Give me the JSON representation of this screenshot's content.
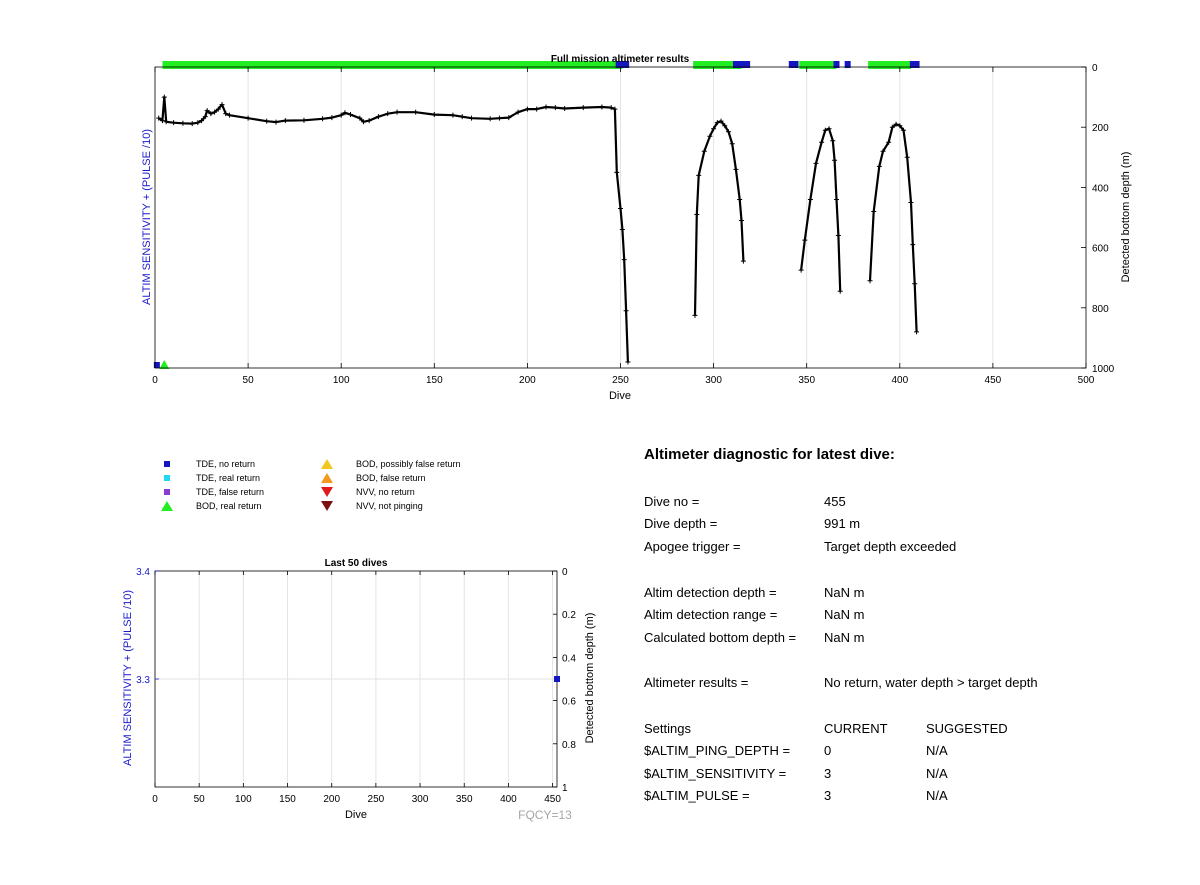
{
  "chart_data": [
    {
      "type": "line",
      "title": "Full mission altimeter results",
      "xlabel": "Dive",
      "ylabel_left": "ALTIM SENSITIVITY + (PULSE /10)",
      "ylabel_right": "Detected bottom depth (m)",
      "xlim": [
        0,
        500
      ],
      "ylim_right": [
        1000,
        0
      ],
      "x_ticks": [
        "0",
        "50",
        "100",
        "150",
        "200",
        "250",
        "300",
        "350",
        "400",
        "450",
        "500"
      ],
      "y_right_ticks": [
        "0",
        "200",
        "400",
        "600",
        "800",
        "1000"
      ],
      "grid": "vertical",
      "series": [
        {
          "kind": "detected-bottom-depth",
          "color": "#000000",
          "segments": [
            [
              [
                2,
                170
              ],
              [
                4,
                178
              ],
              [
                5,
                100
              ],
              [
                6,
                182
              ],
              [
                10,
                185
              ],
              [
                15,
                187
              ],
              [
                20,
                188
              ],
              [
                23,
                185
              ],
              [
                25,
                178
              ],
              [
                27,
                165
              ],
              [
                28,
                145
              ],
              [
                30,
                155
              ],
              [
                32,
                150
              ],
              [
                34,
                140
              ],
              [
                36,
                125
              ],
              [
                38,
                155
              ],
              [
                40,
                160
              ],
              [
                50,
                170
              ],
              [
                60,
                180
              ],
              [
                65,
                183
              ],
              [
                70,
                178
              ],
              [
                80,
                177
              ],
              [
                90,
                172
              ],
              [
                95,
                168
              ],
              [
                100,
                160
              ],
              [
                102,
                152
              ],
              [
                105,
                158
              ],
              [
                110,
                170
              ],
              [
                112,
                182
              ],
              [
                115,
                178
              ],
              [
                120,
                165
              ],
              [
                125,
                155
              ],
              [
                130,
                150
              ],
              [
                140,
                150
              ],
              [
                150,
                158
              ],
              [
                160,
                160
              ],
              [
                165,
                165
              ],
              [
                170,
                170
              ],
              [
                180,
                172
              ],
              [
                185,
                170
              ],
              [
                190,
                168
              ],
              [
                195,
                150
              ],
              [
                200,
                140
              ],
              [
                205,
                140
              ],
              [
                210,
                133
              ],
              [
                215,
                135
              ],
              [
                220,
                138
              ],
              [
                230,
                135
              ],
              [
                240,
                133
              ],
              [
                245,
                135
              ],
              [
                247,
                140
              ],
              [
                248,
                350
              ],
              [
                250,
                470
              ],
              [
                251,
                540
              ],
              [
                252,
                640
              ],
              [
                253,
                810
              ],
              [
                254,
                980
              ]
            ],
            [
              [
                290,
                825
              ],
              [
                291,
                490
              ],
              [
                292,
                360
              ],
              [
                295,
                280
              ],
              [
                298,
                230
              ],
              [
                300,
                205
              ],
              [
                302,
                185
              ],
              [
                304,
                180
              ],
              [
                306,
                195
              ],
              [
                308,
                215
              ],
              [
                310,
                255
              ],
              [
                312,
                340
              ],
              [
                314,
                440
              ],
              [
                315,
                510
              ],
              [
                316,
                645
              ]
            ],
            [
              [
                347,
                675
              ],
              [
                349,
                575
              ],
              [
                352,
                440
              ],
              [
                355,
                320
              ],
              [
                358,
                250
              ],
              [
                360,
                210
              ],
              [
                362,
                205
              ],
              [
                364,
                245
              ],
              [
                365,
                310
              ],
              [
                366,
                440
              ],
              [
                367,
                560
              ],
              [
                368,
                745
              ]
            ],
            [
              [
                384,
                710
              ],
              [
                386,
                480
              ],
              [
                389,
                330
              ],
              [
                391,
                280
              ],
              [
                394,
                250
              ],
              [
                396,
                200
              ],
              [
                398,
                190
              ],
              [
                400,
                195
              ],
              [
                402,
                210
              ],
              [
                404,
                300
              ],
              [
                406,
                450
              ],
              [
                407,
                590
              ],
              [
                408,
                720
              ],
              [
                409,
                880
              ]
            ]
          ]
        },
        {
          "kind": "BOD, real return",
          "color": "#22ee22",
          "ranges": [
            [
              4,
              251
            ],
            [
              289,
              315
            ],
            [
              346,
              366
            ],
            [
              383,
              406
            ]
          ]
        },
        {
          "kind": "TDE, no return",
          "color": "#1616c0",
          "points": [
            249,
            251,
            253,
            253,
            312,
            314,
            316,
            318,
            342,
            344,
            366,
            372,
            407,
            409
          ]
        }
      ],
      "bottom_markers": [
        {
          "x": 1,
          "kind": "TDE, no return",
          "color": "#1616c0"
        },
        {
          "x": 5,
          "kind": "BOD, real return",
          "color": "#22ee22"
        }
      ]
    },
    {
      "type": "scatter",
      "title": "Last 50 dives",
      "xlabel": "Dive",
      "ylabel_left": "ALTIM SENSITIVITY + (PULSE /10)",
      "ylabel_right": "Detected bottom depth (m)",
      "xlim": [
        0,
        455
      ],
      "ylim_left": [
        3.2,
        3.4
      ],
      "ylim_right": [
        1,
        0
      ],
      "x_ticks": [
        "0",
        "50",
        "100",
        "150",
        "200",
        "250",
        "300",
        "350",
        "400",
        "450"
      ],
      "y_left_ticks": [
        "3.4",
        "3.3"
      ],
      "y_right_ticks": [
        "0",
        "0.2",
        "0.4",
        "0.6",
        "0.8",
        "1"
      ],
      "grid": "both",
      "points": [
        {
          "x": 455,
          "y": 3.3,
          "kind": "TDE, no return",
          "color": "#1616c0"
        }
      ],
      "annotation": "FQCY=13"
    }
  ],
  "legend": [
    {
      "label": "TDE, no return",
      "shape": "square",
      "color": "#1616c0"
    },
    {
      "label": "TDE, real return",
      "shape": "square",
      "color": "#22d8ee"
    },
    {
      "label": "TDE, false return",
      "shape": "square",
      "color": "#8a3ccf"
    },
    {
      "label": "BOD, real return",
      "shape": "triangle-up",
      "color": "#22ee22"
    },
    {
      "label": "BOD, possibly false return",
      "shape": "triangle-up",
      "color": "#f2c81e"
    },
    {
      "label": "BOD, false return",
      "shape": "triangle-up",
      "color": "#f39a1e"
    },
    {
      "label": "NVV, no return",
      "shape": "triangle-down",
      "color": "#e01b1b"
    },
    {
      "label": "NVV, not pinging",
      "shape": "triangle-down",
      "color": "#7a1010"
    }
  ],
  "diagnostic": {
    "title": "Altimeter diagnostic for latest dive:",
    "dive_no_label": "Dive no =",
    "dive_no": "455",
    "dive_depth_label": "Dive depth =",
    "dive_depth": "991 m",
    "apogee_label": "Apogee trigger =",
    "apogee": "Target depth exceeded",
    "altim_depth_label": "Altim detection depth =",
    "altim_depth": "NaN m",
    "altim_range_label": "Altim detection range =",
    "altim_range": "NaN m",
    "calc_depth_label": "Calculated bottom depth =",
    "calc_depth": "NaN m",
    "results_label": "Altimeter results =",
    "results": "No return, water depth > target depth",
    "settings_label": "Settings",
    "current_label": "CURRENT",
    "suggested_label": "SUGGESTED",
    "ping_depth_label": "$ALTIM_PING_DEPTH =",
    "ping_depth_current": "0",
    "ping_depth_suggested": "N/A",
    "sensitivity_label": "$ALTIM_SENSITIVITY =",
    "sensitivity_current": "3",
    "sensitivity_suggested": "N/A",
    "pulse_label": "$ALTIM_PULSE =",
    "pulse_current": "3",
    "pulse_suggested": "N/A"
  }
}
